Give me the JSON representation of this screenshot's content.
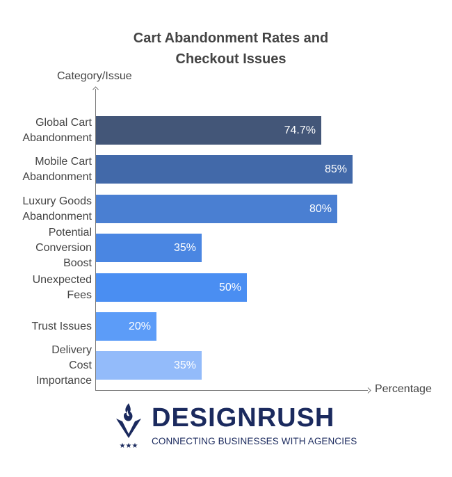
{
  "chart_data": {
    "type": "bar",
    "orientation": "horizontal",
    "title": "Cart Abandonment Rates and Checkout Issues",
    "title_lines": [
      "Cart Abandonment Rates and",
      "Checkout Issues"
    ],
    "xlabel": "Percentage",
    "ylabel": "Category/Issue",
    "categories": [
      "Global Cart Abandonment",
      "Mobile Cart Abandonment",
      "Luxury Goods Abandonment",
      "Potential Conversion Boost",
      "Unexpected Fees",
      "Trust Issues",
      "Delivery Cost Importance"
    ],
    "values": [
      74.7,
      85,
      80,
      35,
      50,
      20,
      35
    ],
    "value_labels": [
      "74.7%",
      "85%",
      "80%",
      "35%",
      "50%",
      "20%",
      "35%"
    ],
    "colors": [
      "#435678",
      "#4269A9",
      "#4A7FD2",
      "#4A86E2",
      "#4A8EF2",
      "#5C9CF8",
      "#93BBFA"
    ],
    "grid": false,
    "legend": null,
    "ticks_visible": false
  },
  "bars": [
    {
      "label_lines": [
        "Global Cart",
        "Abandonment"
      ],
      "value": 74.7,
      "value_label": "74.7%",
      "color": "#435678"
    },
    {
      "label_lines": [
        "Mobile Cart",
        "Abandonment"
      ],
      "value": 85,
      "value_label": "85%",
      "color": "#4269A9"
    },
    {
      "label_lines": [
        "Luxury Goods",
        "Abandonment"
      ],
      "value": 80,
      "value_label": "80%",
      "color": "#4A7FD2"
    },
    {
      "label_lines": [
        "Potential",
        "Conversion",
        "Boost"
      ],
      "value": 35,
      "value_label": "35%",
      "color": "#4A86E2"
    },
    {
      "label_lines": [
        "Unexpected",
        "Fees"
      ],
      "value": 50,
      "value_label": "50%",
      "color": "#4A8EF2"
    },
    {
      "label_lines": [
        "Trust Issues"
      ],
      "value": 20,
      "value_label": "20%",
      "color": "#5C9CF8"
    },
    {
      "label_lines": [
        "Delivery",
        "Cost",
        "Importance"
      ],
      "value": 35,
      "value_label": "35%",
      "color": "#93BBFA"
    }
  ],
  "logo": {
    "name": "DESIGNRUSH",
    "tagline": "CONNECTING BUSINESSES WITH AGENCIES",
    "color": "#1B2A5E"
  }
}
